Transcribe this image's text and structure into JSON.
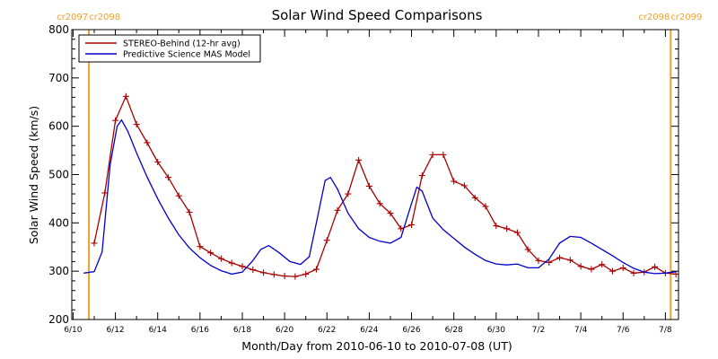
{
  "chart_data": {
    "type": "line",
    "title": "Solar Wind Speed Comparisons",
    "xlabel": "Month/Day from 2010-06-10 to 2010-07-08 (UT)",
    "ylabel": "Solar Wind Speed (km/s)",
    "xlim": [
      "2010-06-10",
      "2010-07-08"
    ],
    "ylim": [
      200,
      800
    ],
    "x_ticks": [
      {
        "date": "2010-06-10",
        "label": "6/10"
      },
      {
        "date": "2010-06-12",
        "label": "6/12"
      },
      {
        "date": "2010-06-14",
        "label": "6/14"
      },
      {
        "date": "2010-06-16",
        "label": "6/16"
      },
      {
        "date": "2010-06-18",
        "label": "6/18"
      },
      {
        "date": "2010-06-20",
        "label": "6/20"
      },
      {
        "date": "2010-06-22",
        "label": "6/22"
      },
      {
        "date": "2010-06-24",
        "label": "6/24"
      },
      {
        "date": "2010-06-26",
        "label": "6/26"
      },
      {
        "date": "2010-06-28",
        "label": "6/28"
      },
      {
        "date": "2010-06-30",
        "label": "6/30"
      },
      {
        "date": "2010-07-02",
        "label": "7/2"
      },
      {
        "date": "2010-07-04",
        "label": "7/4"
      },
      {
        "date": "2010-07-06",
        "label": "7/6"
      },
      {
        "date": "2010-07-08",
        "label": "7/8"
      }
    ],
    "y_ticks": [
      200,
      300,
      400,
      500,
      600,
      700,
      800
    ],
    "legend_position": "top-left",
    "series": [
      {
        "name": "STEREO-Behind (12-hr avg)",
        "color": "#aa0000",
        "marker": "plus",
        "points": [
          [
            "2010-06-11 00:00",
            358
          ],
          [
            "2010-06-11 12:00",
            462
          ],
          [
            "2010-06-12 00:00",
            612
          ],
          [
            "2010-06-12 12:00",
            662
          ],
          [
            "2010-06-13 00:00",
            604
          ],
          [
            "2010-06-13 12:00",
            566
          ],
          [
            "2010-06-14 00:00",
            526
          ],
          [
            "2010-06-14 12:00",
            494
          ],
          [
            "2010-06-15 00:00",
            456
          ],
          [
            "2010-06-15 12:00",
            422
          ],
          [
            "2010-06-16 00:00",
            351
          ],
          [
            "2010-06-16 12:00",
            338
          ],
          [
            "2010-06-17 00:00",
            326
          ],
          [
            "2010-06-17 12:00",
            317
          ],
          [
            "2010-06-18 00:00",
            310
          ],
          [
            "2010-06-18 12:00",
            303
          ],
          [
            "2010-06-19 00:00",
            297
          ],
          [
            "2010-06-19 12:00",
            293
          ],
          [
            "2010-06-20 00:00",
            290
          ],
          [
            "2010-06-20 12:00",
            289
          ],
          [
            "2010-06-21 00:00",
            294
          ],
          [
            "2010-06-21 12:00",
            304
          ],
          [
            "2010-06-22 00:00",
            364
          ],
          [
            "2010-06-22 12:00",
            426
          ],
          [
            "2010-06-23 00:00",
            460
          ],
          [
            "2010-06-23 12:00",
            530
          ],
          [
            "2010-06-24 00:00",
            476
          ],
          [
            "2010-06-24 12:00",
            440
          ],
          [
            "2010-06-25 00:00",
            420
          ],
          [
            "2010-06-25 12:00",
            388
          ],
          [
            "2010-06-26 00:00",
            396
          ],
          [
            "2010-06-26 12:00",
            498
          ],
          [
            "2010-06-27 00:00",
            541
          ],
          [
            "2010-06-27 12:00",
            541
          ],
          [
            "2010-06-28 00:00",
            486
          ],
          [
            "2010-06-28 12:00",
            477
          ],
          [
            "2010-06-29 00:00",
            452
          ],
          [
            "2010-06-29 12:00",
            434
          ],
          [
            "2010-06-30 00:00",
            394
          ],
          [
            "2010-06-30 12:00",
            388
          ],
          [
            "2010-07-01 00:00",
            380
          ],
          [
            "2010-07-01 12:00",
            345
          ],
          [
            "2010-07-02 00:00",
            322
          ],
          [
            "2010-07-02 12:00",
            318
          ],
          [
            "2010-07-03 00:00",
            328
          ],
          [
            "2010-07-03 12:00",
            323
          ],
          [
            "2010-07-04 00:00",
            310
          ],
          [
            "2010-07-04 12:00",
            304
          ],
          [
            "2010-07-05 00:00",
            314
          ],
          [
            "2010-07-05 12:00",
            300
          ],
          [
            "2010-07-06 00:00",
            307
          ],
          [
            "2010-07-06 12:00",
            296
          ],
          [
            "2010-07-07 00:00",
            298
          ],
          [
            "2010-07-07 12:00",
            309
          ],
          [
            "2010-07-08 00:00",
            296
          ],
          [
            "2010-07-08 12:00",
            294
          ]
        ]
      },
      {
        "name": "Predictive Science MAS Model",
        "color": "#0000cc",
        "marker": "none",
        "points": [
          [
            "2010-06-10 12:00",
            296
          ],
          [
            "2010-06-11 00:00",
            299
          ],
          [
            "2010-06-11 09:00",
            340
          ],
          [
            "2010-06-11 18:00",
            520
          ],
          [
            "2010-06-12 02:00",
            600
          ],
          [
            "2010-06-12 07:00",
            613
          ],
          [
            "2010-06-12 14:00",
            590
          ],
          [
            "2010-06-13 00:00",
            545
          ],
          [
            "2010-06-13 12:00",
            495
          ],
          [
            "2010-06-14 00:00",
            450
          ],
          [
            "2010-06-14 12:00",
            410
          ],
          [
            "2010-06-15 00:00",
            375
          ],
          [
            "2010-06-15 12:00",
            348
          ],
          [
            "2010-06-16 00:00",
            328
          ],
          [
            "2010-06-16 12:00",
            312
          ],
          [
            "2010-06-17 00:00",
            301
          ],
          [
            "2010-06-17 12:00",
            294
          ],
          [
            "2010-06-18 00:00",
            298
          ],
          [
            "2010-06-18 12:00",
            322
          ],
          [
            "2010-06-18 21:00",
            345
          ],
          [
            "2010-06-19 06:00",
            353
          ],
          [
            "2010-06-19 18:00",
            338
          ],
          [
            "2010-06-20 06:00",
            320
          ],
          [
            "2010-06-20 18:00",
            314
          ],
          [
            "2010-06-21 04:00",
            330
          ],
          [
            "2010-06-21 12:00",
            400
          ],
          [
            "2010-06-21 22:00",
            488
          ],
          [
            "2010-06-22 04:00",
            494
          ],
          [
            "2010-06-22 12:00",
            470
          ],
          [
            "2010-06-23 00:00",
            420
          ],
          [
            "2010-06-23 12:00",
            388
          ],
          [
            "2010-06-24 00:00",
            370
          ],
          [
            "2010-06-24 12:00",
            362
          ],
          [
            "2010-06-25 00:00",
            358
          ],
          [
            "2010-06-25 12:00",
            370
          ],
          [
            "2010-06-26 00:00",
            440
          ],
          [
            "2010-06-26 06:00",
            474
          ],
          [
            "2010-06-26 12:00",
            466
          ],
          [
            "2010-06-27 00:00",
            410
          ],
          [
            "2010-06-27 12:00",
            386
          ],
          [
            "2010-06-28 00:00",
            368
          ],
          [
            "2010-06-28 12:00",
            350
          ],
          [
            "2010-06-29 00:00",
            335
          ],
          [
            "2010-06-29 12:00",
            322
          ],
          [
            "2010-06-30 00:00",
            315
          ],
          [
            "2010-06-30 12:00",
            313
          ],
          [
            "2010-07-01 00:00",
            315
          ],
          [
            "2010-07-01 12:00",
            307
          ],
          [
            "2010-07-02 00:00",
            307
          ],
          [
            "2010-07-02 12:00",
            325
          ],
          [
            "2010-07-03 00:00",
            358
          ],
          [
            "2010-07-03 12:00",
            372
          ],
          [
            "2010-07-04 00:00",
            370
          ],
          [
            "2010-07-04 12:00",
            358
          ],
          [
            "2010-07-05 00:00",
            345
          ],
          [
            "2010-07-05 12:00",
            332
          ],
          [
            "2010-07-06 00:00",
            318
          ],
          [
            "2010-07-06 12:00",
            306
          ],
          [
            "2010-07-07 00:00",
            298
          ],
          [
            "2010-07-07 12:00",
            295
          ],
          [
            "2010-07-08 00:00",
            296
          ],
          [
            "2010-07-08 12:00",
            299
          ]
        ]
      }
    ],
    "markers": [
      {
        "date": "2010-06-10 18:00",
        "color": "#f0a030",
        "labels": [
          "cr2097",
          "cr2098"
        ],
        "side": "left"
      },
      {
        "date": "2010-07-08 06:00",
        "color": "#f0a030",
        "labels": [
          "cr2098",
          "cr2099"
        ],
        "side": "right"
      }
    ]
  }
}
